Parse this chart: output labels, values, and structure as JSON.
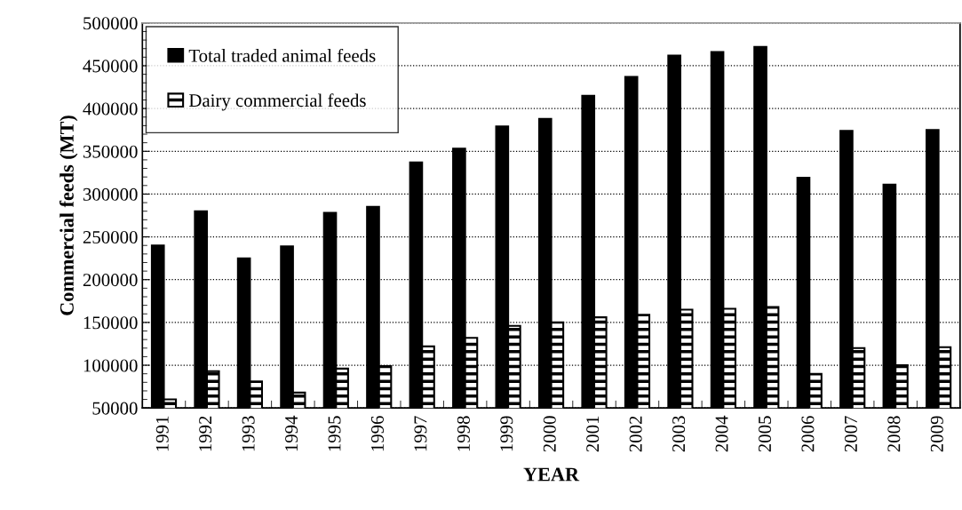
{
  "chart_data": {
    "type": "bar",
    "xlabel": "YEAR",
    "ylabel": "Commercial feeds (MT)",
    "categories": [
      "1991",
      "1992",
      "1993",
      "1994",
      "1995",
      "1996",
      "1997",
      "1998",
      "1999",
      "2000",
      "2001",
      "2002",
      "2003",
      "2004",
      "2005",
      "2006",
      "2007",
      "2008",
      "2009"
    ],
    "series": [
      {
        "name": "Total traded animal feeds",
        "color": "#000000",
        "values": [
          240000,
          280000,
          225000,
          239000,
          278000,
          285000,
          337000,
          353000,
          379000,
          388000,
          415000,
          437000,
          462000,
          466000,
          472000,
          319000,
          374000,
          311000,
          375000
        ]
      },
      {
        "name": "Dairy commercial feeds",
        "color": "#000000",
        "values": [
          60000,
          93000,
          81000,
          68000,
          96000,
          99000,
          122000,
          132000,
          146000,
          150000,
          156000,
          159000,
          165000,
          166000,
          168000,
          90000,
          120000,
          100000,
          121000
        ]
      }
    ],
    "ylim": [
      50000,
      500000
    ],
    "yticks": [
      50000,
      100000,
      150000,
      200000,
      250000,
      300000,
      350000,
      400000,
      450000,
      500000
    ],
    "grid": "y",
    "legend": "top left"
  }
}
